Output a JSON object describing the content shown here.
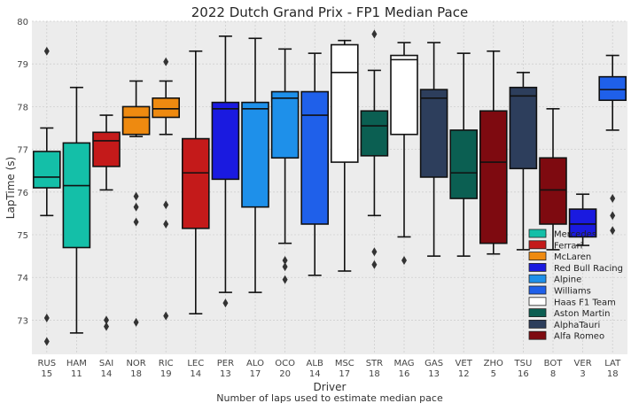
{
  "chart_data": {
    "type": "box",
    "title": "2022 Dutch Grand Prix - FP1 Median Pace",
    "ylabel": "LapTime (s)",
    "xlabel": "Driver",
    "xlabel2": "Number of laps used to estimate median pace",
    "ylim": [
      72.2,
      80
    ],
    "yticks": [
      73,
      74,
      75,
      76,
      77,
      78,
      79,
      80
    ],
    "grid": true,
    "legend_position": "lower-right",
    "legend": [
      {
        "name": "Mercedes",
        "color": "#14bfa8"
      },
      {
        "name": "Ferrari",
        "color": "#c41a1a"
      },
      {
        "name": "McLaren",
        "color": "#ee8a10"
      },
      {
        "name": "Red Bull Racing",
        "color": "#1a1ae0"
      },
      {
        "name": "Alpine",
        "color": "#1e90ea"
      },
      {
        "name": "Williams",
        "color": "#1f60ea"
      },
      {
        "name": "Haas F1 Team",
        "color": "#ffffff"
      },
      {
        "name": "Aston Martin",
        "color": "#0b5f52"
      },
      {
        "name": "AlphaTauri",
        "color": "#2d3e5c"
      },
      {
        "name": "Alfa Romeo",
        "color": "#7e0a10"
      }
    ],
    "boxes": [
      {
        "driver": "RUS",
        "laps": "15",
        "team": "Mercedes",
        "color": "#14bfa8",
        "wlow": 75.45,
        "q1": 76.1,
        "median": 76.35,
        "q3": 76.95,
        "whigh": 77.5,
        "outliers": [
          79.3,
          73.05,
          72.5
        ]
      },
      {
        "driver": "HAM",
        "laps": "11",
        "team": "Mercedes",
        "color": "#14bfa8",
        "wlow": 72.7,
        "q1": 74.7,
        "median": 76.15,
        "q3": 77.15,
        "whigh": 78.45,
        "outliers": []
      },
      {
        "driver": "SAI",
        "laps": "14",
        "team": "Ferrari",
        "color": "#c41a1a",
        "wlow": 76.05,
        "q1": 76.6,
        "median": 77.2,
        "q3": 77.4,
        "whigh": 77.8,
        "outliers": [
          73.0,
          72.85
        ]
      },
      {
        "driver": "NOR",
        "laps": "18",
        "team": "McLaren",
        "color": "#ee8a10",
        "wlow": 77.3,
        "q1": 77.35,
        "median": 77.75,
        "q3": 78.0,
        "whigh": 78.6,
        "outliers": [
          75.9,
          75.65,
          75.3,
          72.95
        ]
      },
      {
        "driver": "RIC",
        "laps": "19",
        "team": "McLaren",
        "color": "#ee8a10",
        "wlow": 77.35,
        "q1": 77.75,
        "median": 77.95,
        "q3": 78.2,
        "whigh": 78.6,
        "outliers": [
          79.05,
          75.7,
          75.25,
          73.1
        ]
      },
      {
        "driver": "LEC",
        "laps": "14",
        "team": "Ferrari",
        "color": "#c41a1a",
        "wlow": 73.15,
        "q1": 75.15,
        "median": 76.45,
        "q3": 77.25,
        "whigh": 79.3,
        "outliers": []
      },
      {
        "driver": "PER",
        "laps": "13",
        "team": "Red Bull Racing",
        "color": "#1a1ae0",
        "wlow": 73.65,
        "q1": 76.3,
        "median": 77.95,
        "q3": 78.1,
        "whigh": 79.65,
        "outliers": [
          73.4
        ]
      },
      {
        "driver": "ALO",
        "laps": "17",
        "team": "Alpine",
        "color": "#1e90ea",
        "wlow": 73.65,
        "q1": 75.65,
        "median": 77.95,
        "q3": 78.1,
        "whigh": 79.6,
        "outliers": []
      },
      {
        "driver": "OCO",
        "laps": "20",
        "team": "Alpine",
        "color": "#1e90ea",
        "wlow": 74.8,
        "q1": 76.8,
        "median": 78.2,
        "q3": 78.35,
        "whigh": 79.35,
        "outliers": [
          74.4,
          74.25,
          73.95
        ]
      },
      {
        "driver": "ALB",
        "laps": "14",
        "team": "Williams",
        "color": "#1f60ea",
        "wlow": 74.05,
        "q1": 75.25,
        "median": 77.8,
        "q3": 78.35,
        "whigh": 79.25,
        "outliers": []
      },
      {
        "driver": "MSC",
        "laps": "17",
        "team": "Haas F1 Team",
        "color": "#ffffff",
        "wlow": 74.15,
        "q1": 76.7,
        "median": 78.8,
        "q3": 79.45,
        "whigh": 79.55,
        "outliers": []
      },
      {
        "driver": "STR",
        "laps": "18",
        "team": "Aston Martin",
        "color": "#0b5f52",
        "wlow": 75.45,
        "q1": 76.85,
        "median": 77.55,
        "q3": 77.9,
        "whigh": 78.85,
        "outliers": [
          79.7,
          74.6,
          74.3
        ]
      },
      {
        "driver": "MAG",
        "laps": "16",
        "team": "Haas F1 Team",
        "color": "#ffffff",
        "wlow": 74.95,
        "q1": 77.35,
        "median": 79.1,
        "q3": 79.2,
        "whigh": 79.5,
        "outliers": [
          74.4
        ]
      },
      {
        "driver": "GAS",
        "laps": "13",
        "team": "AlphaTauri",
        "color": "#2d3e5c",
        "wlow": 74.5,
        "q1": 76.35,
        "median": 78.2,
        "q3": 78.4,
        "whigh": 79.5,
        "outliers": []
      },
      {
        "driver": "VET",
        "laps": "12",
        "team": "Aston Martin",
        "color": "#0b5f52",
        "wlow": 74.5,
        "q1": 75.85,
        "median": 76.45,
        "q3": 77.45,
        "whigh": 79.25,
        "outliers": []
      },
      {
        "driver": "ZHO",
        "laps": "5",
        "team": "Alfa Romeo",
        "color": "#7e0a10",
        "wlow": 74.55,
        "q1": 74.8,
        "median": 76.7,
        "q3": 77.9,
        "whigh": 79.3,
        "outliers": []
      },
      {
        "driver": "TSU",
        "laps": "16",
        "team": "AlphaTauri",
        "color": "#2d3e5c",
        "wlow": 74.65,
        "q1": 76.55,
        "median": 78.25,
        "q3": 78.45,
        "whigh": 78.8,
        "outliers": []
      },
      {
        "driver": "BOT",
        "laps": "8",
        "team": "Alfa Romeo",
        "color": "#7e0a10",
        "wlow": 74.65,
        "q1": 75.25,
        "median": 76.05,
        "q3": 76.8,
        "whigh": 77.95,
        "outliers": []
      },
      {
        "driver": "VER",
        "laps": "3",
        "team": "Red Bull Racing",
        "color": "#1a1ae0",
        "wlow": 74.75,
        "q1": 74.95,
        "median": 75.25,
        "q3": 75.6,
        "whigh": 75.95,
        "outliers": []
      },
      {
        "driver": "LAT",
        "laps": "18",
        "team": "Williams",
        "color": "#1f60ea",
        "wlow": 77.45,
        "q1": 78.15,
        "median": 78.4,
        "q3": 78.7,
        "whigh": 79.2,
        "outliers": [
          75.85,
          75.45,
          75.1
        ]
      }
    ]
  }
}
